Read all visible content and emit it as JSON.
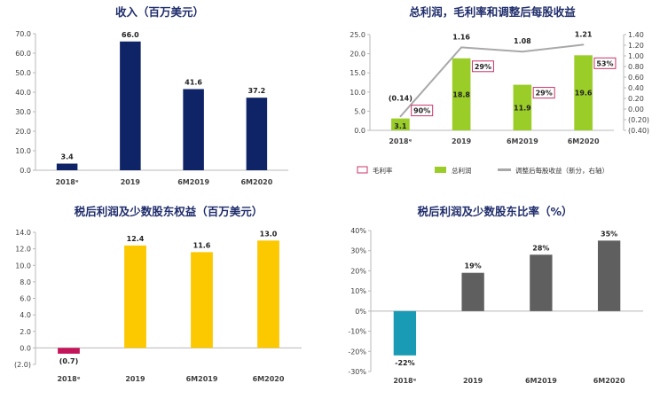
{
  "chart_data": [
    {
      "type": "bar",
      "title": "收入（百万美元）",
      "categories": [
        "2018ᵉ",
        "2019",
        "6M2019",
        "6M2020"
      ],
      "values": [
        3.4,
        66.0,
        41.6,
        37.2
      ],
      "value_labels": [
        "3.4",
        "66.0",
        "41.6",
        "37.2"
      ],
      "ylim": [
        0,
        70
      ],
      "yticks": [
        "0.0",
        "10.0",
        "20.0",
        "30.0",
        "40.0",
        "50.0",
        "60.0",
        "70.0"
      ],
      "colors": {
        "bar": "#0f2466"
      },
      "grid": false
    },
    {
      "type": "bar+line",
      "title": "总利润，毛利率和调整后每股收益",
      "categories": [
        "2018ᵉ",
        "2019",
        "6M2019",
        "6M2020"
      ],
      "series": [
        {
          "name": "总利润",
          "kind": "bar",
          "axis": "left",
          "values": [
            3.1,
            18.8,
            11.9,
            19.6
          ],
          "labels": [
            "3.1",
            "18.8",
            "11.9",
            "19.6"
          ]
        },
        {
          "name": "毛利率",
          "kind": "box-label",
          "values": [
            90,
            29,
            29,
            53
          ],
          "labels": [
            "90%",
            "29%",
            "29%",
            "53%"
          ]
        },
        {
          "name": "调整后每股收益（新分，右轴）",
          "kind": "line",
          "axis": "right",
          "values": [
            -0.14,
            1.16,
            1.08,
            1.21
          ],
          "labels": [
            "(0.14)",
            "1.16",
            "1.08",
            "1.21"
          ]
        }
      ],
      "ylim": [
        0,
        25
      ],
      "yticks": [
        "0.0",
        "5.0",
        "10.0",
        "15.0",
        "20.0",
        "25.0"
      ],
      "y2lim": [
        -0.4,
        1.4
      ],
      "y2ticks": [
        "(0.40)",
        "(0.20)",
        "0.00",
        "0.20",
        "0.40",
        "0.60",
        "0.80",
        "1.00",
        "1.20",
        "1.40"
      ],
      "legend": [
        "毛利率",
        "总利润",
        "调整后每股收益（新分，右轴）"
      ],
      "legend_position": "bottom",
      "colors": {
        "bar": "#9acd28",
        "line": "#a8a8a8",
        "box": "#c8336a"
      },
      "grid": false
    },
    {
      "type": "bar",
      "title": "税后利润及少数股东权益（百万美元）",
      "categories": [
        "2018ᵉ",
        "2019",
        "6M2019",
        "6M2020"
      ],
      "values": [
        -0.7,
        12.4,
        11.6,
        13.0
      ],
      "value_labels": [
        "(0.7)",
        "12.4",
        "11.6",
        "13.0"
      ],
      "ylim": [
        -2,
        14
      ],
      "yticks": [
        "(2.0)",
        "0.0",
        "2.0",
        "4.0",
        "6.0",
        "8.0",
        "10.0",
        "12.0",
        "14.0"
      ],
      "colors": {
        "bar": "#fcc800",
        "negative": "#c4145a"
      },
      "grid": false
    },
    {
      "type": "bar",
      "title": "税后利润及少数股东比率（%）",
      "categories": [
        "2018ᵉ",
        "2019",
        "6M2019",
        "6M2020"
      ],
      "values": [
        -22,
        19,
        28,
        35
      ],
      "value_labels": [
        "-22%",
        "19%",
        "28%",
        "35%"
      ],
      "ylim": [
        -30,
        40
      ],
      "yticks": [
        "-30%",
        "-20%",
        "-10%",
        "0%",
        "10%",
        "20%",
        "30%",
        "40%"
      ],
      "colors": {
        "bar": "#5f5f5f",
        "negative": "#1a9bb5"
      },
      "grid": false
    }
  ]
}
